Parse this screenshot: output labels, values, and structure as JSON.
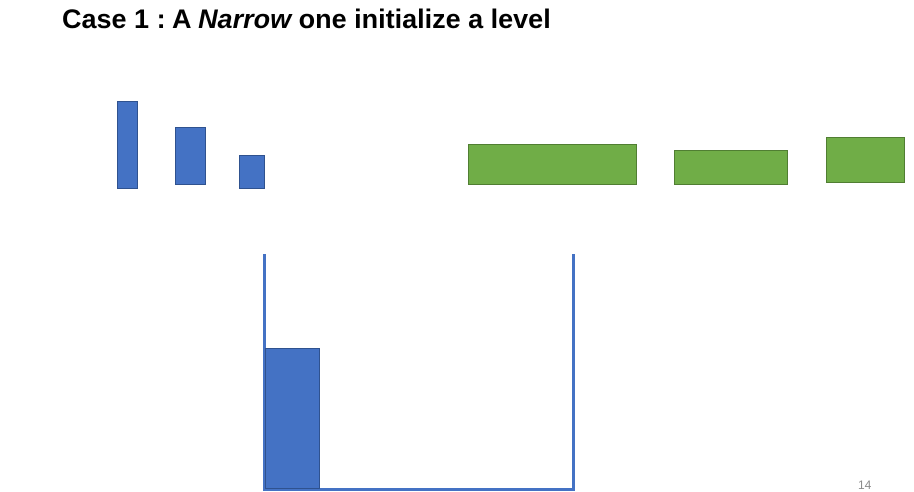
{
  "slide": {
    "title_prefix": "Case 1 : A ",
    "title_emphasis": "Narrow",
    "title_suffix": " one initialize a level",
    "page_number": "14"
  },
  "colors": {
    "narrow_block": "#4472C4",
    "wide_block": "#70AD47",
    "bucket": "#4472C4"
  }
}
